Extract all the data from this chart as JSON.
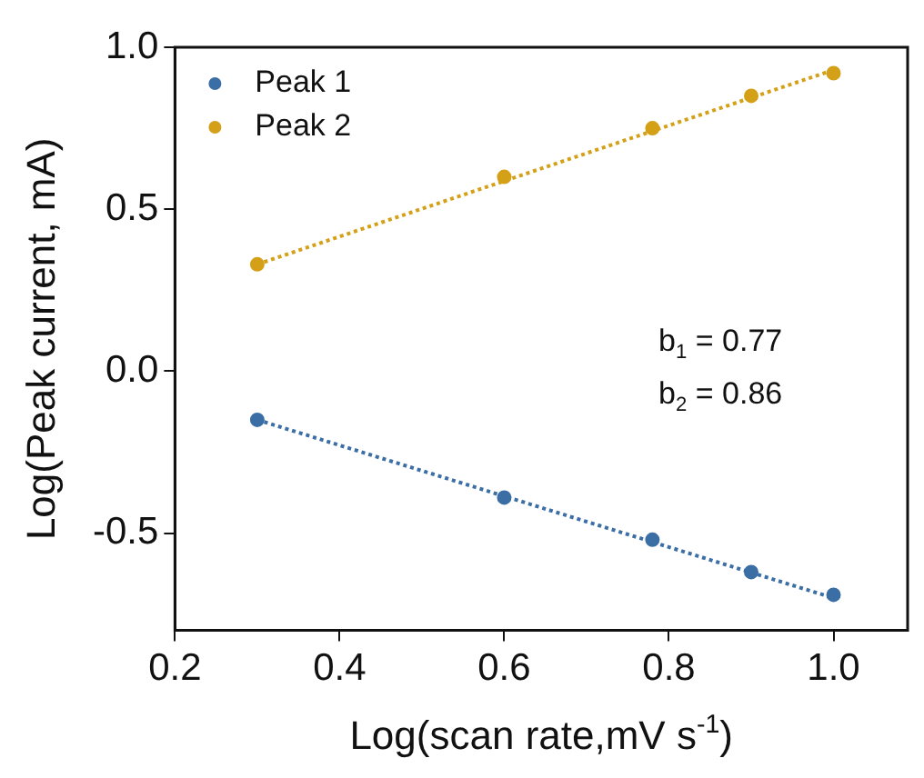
{
  "chart_data": {
    "type": "scatter",
    "xlabel": "Log(scan rate,mV s$^{-1}$)",
    "ylabel": "Log(Peak current, mA)",
    "xlim": [
      0.2,
      1.09
    ],
    "xticks": [
      {
        "value": 0.2,
        "label": "0.2"
      },
      {
        "value": 0.4,
        "label": "0.4"
      },
      {
        "value": 0.6,
        "label": "0.6"
      },
      {
        "value": 0.8,
        "label": "0.8"
      },
      {
        "value": 1.0,
        "label": "1.0"
      }
    ],
    "ylim": [
      -0.8,
      1.0
    ],
    "yticks": [
      {
        "value": -0.5,
        "label": "-0.5"
      },
      {
        "value": 0.0,
        "label": "0.0"
      },
      {
        "value": 0.5,
        "label": "0.5"
      },
      {
        "value": 1.0,
        "label": "1.0"
      }
    ],
    "grid": false,
    "legend": "top left",
    "marker": "circle",
    "annotations": [
      "b$_{1}$ = 0.77",
      "b$_{2}$ = 0.86"
    ],
    "series": [
      {
        "name": "Peak 1",
        "color": "#3a6ea5",
        "x": [
          0.3,
          0.6,
          0.78,
          0.9,
          1.0
        ],
        "values": [
          -0.15,
          -0.39,
          -0.52,
          -0.62,
          -0.69
        ]
      },
      {
        "name": "Peak 2",
        "color": "#d4a017",
        "x": [
          0.3,
          0.6,
          0.78,
          0.9,
          1.0
        ],
        "values": [
          0.33,
          0.6,
          0.75,
          0.85,
          0.92
        ]
      },
      {
        "type": "line",
        "color": "#3a6ea5",
        "line_style": "dotted",
        "marker": "none",
        "x": [
          0.3,
          1.0
        ],
        "values": [
          -0.15,
          -0.7
        ]
      },
      {
        "type": "line",
        "color": "#d4a017",
        "line_style": "dotted",
        "marker": "none",
        "x": [
          0.3,
          1.0
        ],
        "values": [
          0.33,
          0.93
        ]
      }
    ]
  }
}
